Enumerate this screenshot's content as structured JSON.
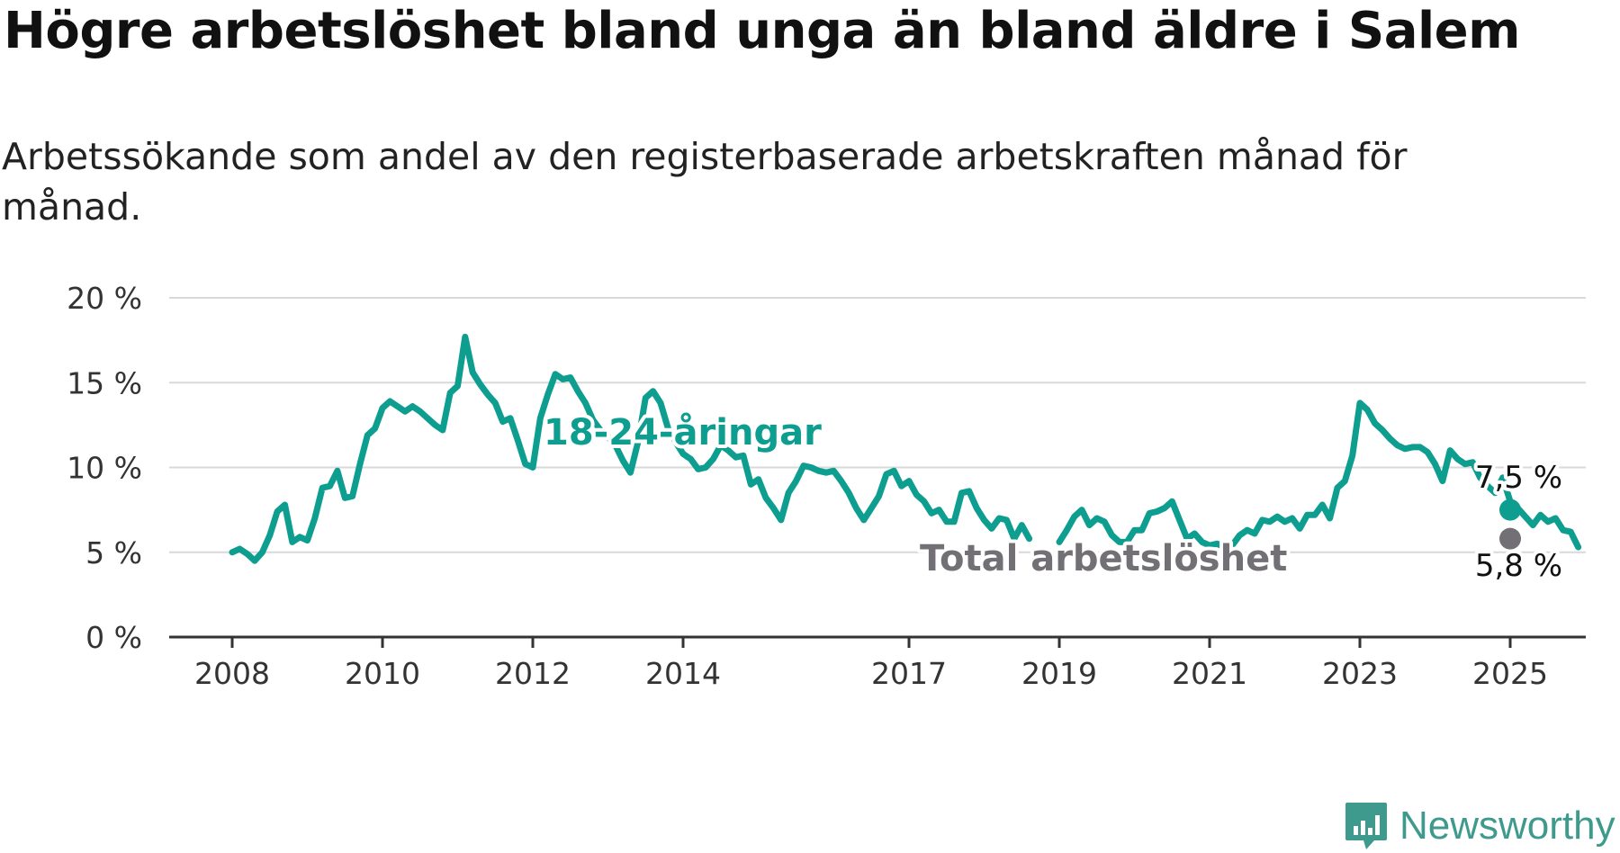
{
  "header": {
    "title": "Högre arbetslöshet bland unga än bland äldre i Salem",
    "subtitle": "Arbetssökande som andel av den registerbaserade arbetskraften månad för månad."
  },
  "brand": {
    "name": "Newsworthy",
    "logo_icon": "bar-chart-speech-bubble-icon",
    "color": "#3f9a8e"
  },
  "chart_data": {
    "type": "line",
    "title": "Högre arbetslöshet bland unga än bland äldre i Salem",
    "subtitle": "Arbetssökande som andel av den registerbaserade arbetskraften månad för månad.",
    "xlabel": "",
    "ylabel": "",
    "ylim": [
      0,
      20
    ],
    "xlim": [
      2007.6,
      2026.0
    ],
    "yticks": [
      0,
      5,
      10,
      15,
      20
    ],
    "ytick_labels": [
      "0 %",
      "5 %",
      "10 %",
      "15 %",
      "20 %"
    ],
    "xticks": [
      2008,
      2010,
      2012,
      2014,
      2017,
      2019,
      2021,
      2023,
      2025
    ],
    "xtick_labels": [
      "2008",
      "2010",
      "2012",
      "2014",
      "2017",
      "2019",
      "2021",
      "2023",
      "2025"
    ],
    "grid": "horizontal",
    "legend": "inline labels",
    "series": [
      {
        "name": "18-24-åringar",
        "color": "#0e9e90",
        "end_label": "7,5 %",
        "points": [
          [
            2008.0,
            5.0
          ],
          [
            2008.1,
            5.2
          ],
          [
            2008.2,
            4.9
          ],
          [
            2008.3,
            4.5
          ],
          [
            2008.4,
            5.0
          ],
          [
            2008.5,
            6.0
          ],
          [
            2008.6,
            7.4
          ],
          [
            2008.7,
            7.8
          ],
          [
            2008.8,
            5.6
          ],
          [
            2008.9,
            5.9
          ],
          [
            2009.0,
            5.7
          ],
          [
            2009.1,
            7.0
          ],
          [
            2009.2,
            8.8
          ],
          [
            2009.3,
            8.9
          ],
          [
            2009.4,
            9.8
          ],
          [
            2009.5,
            8.2
          ],
          [
            2009.6,
            8.3
          ],
          [
            2009.7,
            10.2
          ],
          [
            2009.8,
            11.9
          ],
          [
            2009.9,
            12.3
          ],
          [
            2010.0,
            13.5
          ],
          [
            2010.1,
            13.9
          ],
          [
            2010.2,
            13.6
          ],
          [
            2010.3,
            13.3
          ],
          [
            2010.4,
            13.6
          ],
          [
            2010.5,
            13.3
          ],
          [
            2010.6,
            12.9
          ],
          [
            2010.7,
            12.5
          ],
          [
            2010.8,
            12.2
          ],
          [
            2010.9,
            14.4
          ],
          [
            2011.0,
            14.8
          ],
          [
            2011.1,
            17.7
          ],
          [
            2011.2,
            15.6
          ],
          [
            2011.3,
            14.9
          ],
          [
            2011.4,
            14.3
          ],
          [
            2011.5,
            13.8
          ],
          [
            2011.6,
            12.7
          ],
          [
            2011.7,
            12.9
          ],
          [
            2011.8,
            11.6
          ],
          [
            2011.9,
            10.2
          ],
          [
            2012.0,
            10.0
          ],
          [
            2012.1,
            12.9
          ],
          [
            2012.2,
            14.3
          ],
          [
            2012.3,
            15.5
          ],
          [
            2012.4,
            15.2
          ],
          [
            2012.5,
            15.3
          ],
          [
            2012.6,
            14.5
          ],
          [
            2012.7,
            13.8
          ],
          [
            2012.8,
            12.8
          ],
          [
            2012.9,
            12.2
          ],
          [
            2013.0,
            11.8
          ],
          [
            2013.1,
            11.3
          ],
          [
            2013.2,
            10.4
          ],
          [
            2013.3,
            9.7
          ],
          [
            2013.4,
            11.5
          ],
          [
            2013.5,
            14.1
          ],
          [
            2013.6,
            14.5
          ],
          [
            2013.7,
            13.8
          ],
          [
            2013.8,
            12.3
          ],
          [
            2013.9,
            11.5
          ],
          [
            2014.0,
            10.8
          ],
          [
            2014.1,
            10.5
          ],
          [
            2014.2,
            9.9
          ],
          [
            2014.3,
            10.0
          ],
          [
            2014.4,
            10.5
          ],
          [
            2014.5,
            11.3
          ],
          [
            2014.6,
            11.0
          ],
          [
            2014.7,
            10.6
          ],
          [
            2014.8,
            10.7
          ],
          [
            2014.9,
            9.0
          ],
          [
            2015.0,
            9.3
          ],
          [
            2015.1,
            8.2
          ],
          [
            2015.2,
            7.6
          ],
          [
            2015.3,
            6.9
          ],
          [
            2015.4,
            8.5
          ],
          [
            2015.5,
            9.2
          ],
          [
            2015.6,
            10.1
          ],
          [
            2015.7,
            10.0
          ],
          [
            2015.8,
            9.8
          ],
          [
            2015.9,
            9.7
          ],
          [
            2016.0,
            9.8
          ],
          [
            2016.1,
            9.2
          ],
          [
            2016.2,
            8.5
          ],
          [
            2016.3,
            7.6
          ],
          [
            2016.4,
            6.9
          ],
          [
            2016.5,
            7.6
          ],
          [
            2016.6,
            8.3
          ],
          [
            2016.7,
            9.6
          ],
          [
            2016.8,
            9.8
          ],
          [
            2016.9,
            8.9
          ],
          [
            2017.0,
            9.2
          ],
          [
            2017.1,
            8.4
          ],
          [
            2017.2,
            8.0
          ],
          [
            2017.3,
            7.3
          ],
          [
            2017.4,
            7.5
          ],
          [
            2017.5,
            6.8
          ],
          [
            2017.6,
            6.8
          ],
          [
            2017.7,
            8.5
          ],
          [
            2017.8,
            8.6
          ],
          [
            2017.9,
            7.6
          ],
          [
            2018.0,
            6.9
          ],
          [
            2018.1,
            6.4
          ],
          [
            2018.2,
            7.0
          ],
          [
            2018.3,
            6.9
          ],
          [
            2018.4,
            5.8
          ],
          [
            2018.5,
            6.6
          ],
          [
            2018.6,
            5.8
          ]
        ],
        "points_2": [
          [
            2019.0,
            5.6
          ],
          [
            2019.1,
            6.3
          ],
          [
            2019.2,
            7.1
          ],
          [
            2019.3,
            7.5
          ],
          [
            2019.4,
            6.6
          ],
          [
            2019.5,
            7.0
          ],
          [
            2019.6,
            6.8
          ],
          [
            2019.7,
            6.0
          ],
          [
            2019.8,
            5.6
          ],
          [
            2019.9,
            5.6
          ],
          [
            2020.0,
            6.3
          ],
          [
            2020.1,
            6.3
          ],
          [
            2020.2,
            7.3
          ],
          [
            2020.3,
            7.4
          ],
          [
            2020.4,
            7.6
          ],
          [
            2020.5,
            8.0
          ],
          [
            2020.6,
            6.9
          ],
          [
            2020.7,
            5.8
          ],
          [
            2020.8,
            6.1
          ],
          [
            2020.9,
            5.6
          ],
          [
            2021.0,
            5.4
          ],
          [
            2021.1,
            5.5
          ],
          [
            2021.2,
            5.3
          ],
          [
            2021.3,
            5.4
          ],
          [
            2021.4,
            6.0
          ],
          [
            2021.5,
            6.3
          ],
          [
            2021.6,
            6.1
          ],
          [
            2021.7,
            6.9
          ],
          [
            2021.8,
            6.8
          ],
          [
            2021.9,
            7.1
          ],
          [
            2022.0,
            6.8
          ],
          [
            2022.1,
            7.0
          ],
          [
            2022.2,
            6.4
          ],
          [
            2022.3,
            7.2
          ],
          [
            2022.4,
            7.2
          ],
          [
            2022.5,
            7.8
          ],
          [
            2022.6,
            7.0
          ],
          [
            2022.7,
            8.8
          ],
          [
            2022.8,
            9.2
          ],
          [
            2022.9,
            10.7
          ],
          [
            2023.0,
            13.8
          ],
          [
            2023.1,
            13.4
          ],
          [
            2023.2,
            12.6
          ],
          [
            2023.3,
            12.2
          ],
          [
            2023.4,
            11.7
          ],
          [
            2023.5,
            11.3
          ],
          [
            2023.6,
            11.1
          ],
          [
            2023.7,
            11.2
          ],
          [
            2023.8,
            11.2
          ],
          [
            2023.9,
            10.9
          ],
          [
            2024.0,
            10.2
          ],
          [
            2024.1,
            9.2
          ],
          [
            2024.2,
            11.0
          ],
          [
            2024.3,
            10.5
          ],
          [
            2024.4,
            10.2
          ],
          [
            2024.5,
            10.3
          ],
          [
            2024.6,
            9.4
          ],
          [
            2024.7,
            8.9
          ],
          [
            2024.8,
            8.5
          ],
          [
            2024.9,
            9.4
          ],
          [
            2025.0,
            8.0
          ],
          [
            2025.1,
            7.6
          ],
          [
            2025.2,
            7.1
          ],
          [
            2025.3,
            6.6
          ],
          [
            2025.4,
            7.2
          ],
          [
            2025.5,
            6.8
          ],
          [
            2025.6,
            7.0
          ],
          [
            2025.7,
            6.3
          ],
          [
            2025.8,
            6.2
          ],
          [
            2025.9,
            5.3
          ]
        ],
        "points_3": [
          [
            2026.0,
            5.5
          ]
        ],
        "last_point": [
          2025.0,
          7.5
        ]
      },
      {
        "name": "Total arbetslöshet",
        "color": "#727075",
        "end_label": "5,8 %",
        "points": [],
        "last_point": [
          2025.0,
          5.8
        ]
      }
    ]
  }
}
